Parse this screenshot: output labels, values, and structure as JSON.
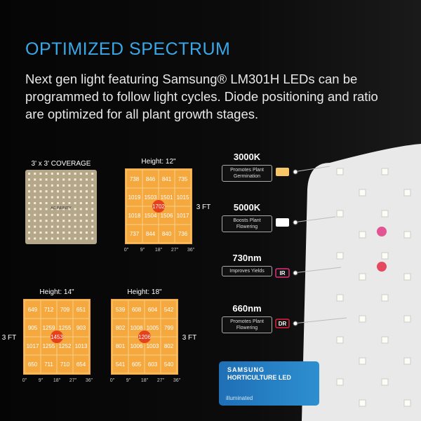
{
  "header": {
    "title": "OPTIMIZED SPECTRUM",
    "body": "Next gen light featuring Samsung® LM301H LEDs can be programmed to follow light cycles. Diode positioning and ratio are optimized for all plant growth stages."
  },
  "coverage": {
    "label": "3' x 3' COVERAGE",
    "brand": "AC INFINITY"
  },
  "maps": [
    {
      "height": "Height: 12\"",
      "side": "3 FT",
      "center": 1702,
      "rows": [
        [
          738,
          846,
          841,
          735
        ],
        [
          1019,
          1503,
          1501,
          1015
        ],
        [
          1018,
          1504,
          1506,
          1017
        ],
        [
          737,
          844,
          840,
          736
        ]
      ],
      "xlabels": [
        "0\"",
        "9\"",
        "18\"",
        "27\"",
        "36\""
      ]
    },
    {
      "height": "Height: 14\"",
      "side": "3 FT",
      "center": 1453,
      "rows": [
        [
          649,
          712,
          709,
          651
        ],
        [
          905,
          1259,
          1255,
          903
        ],
        [
          1017,
          1255,
          1252,
          1013
        ],
        [
          650,
          711,
          710,
          654
        ]
      ],
      "xlabels": [
        "0\"",
        "9\"",
        "18\"",
        "27\"",
        "36\""
      ]
    },
    {
      "height": "Height: 18\"",
      "side": "3 FT",
      "center": 1206,
      "rows": [
        [
          539,
          608,
          604,
          542
        ],
        [
          802,
          1008,
          1005,
          799
        ],
        [
          801,
          1006,
          1003,
          802
        ],
        [
          541,
          605,
          603,
          540
        ]
      ],
      "xlabels": [
        "0\"",
        "9\"",
        "18\"",
        "27\"",
        "36\""
      ]
    }
  ],
  "spectrum": [
    {
      "name": "3000K",
      "desc": "Promotes Plant Germination",
      "color": "#f6c667"
    },
    {
      "name": "5000K",
      "desc": "Boosts Plant Flowering",
      "color": "#ffffff"
    },
    {
      "name": "730nm",
      "desc": "Improves Yields",
      "tag": "IR",
      "color": "#e0307a"
    },
    {
      "name": "660nm",
      "desc": "Promotes Plant Flowering",
      "tag": "DR",
      "color": "#e2203a"
    }
  ],
  "badge": {
    "brand": "SAMSUNG",
    "line": "HORTICULTURE LED",
    "tag": "illuminated"
  }
}
